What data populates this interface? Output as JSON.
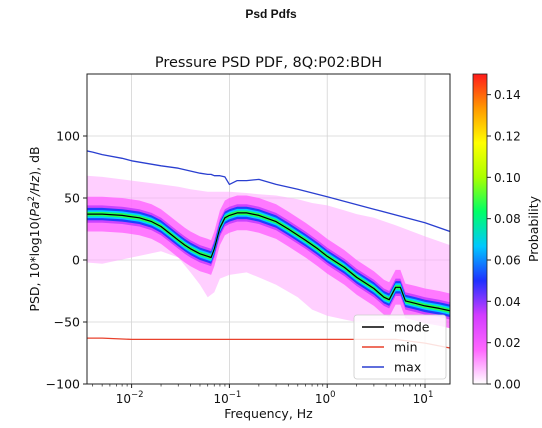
{
  "page": {
    "title": "Psd Pdfs"
  },
  "chart_data": {
    "type": "heatmap",
    "title": "Pressure PSD PDF, 8Q:P02:BDH",
    "xlabel": "Frequency, Hz",
    "ylabel": "PSD, 10*log10(Pa²/Hz), dB",
    "ylabel_parts": {
      "pre": "PSD, 10*log10(",
      "italic_base": "Pa",
      "sup": "2",
      "italic_tail": "/Hz",
      "post": "), dB"
    },
    "x_scale": "log",
    "xlim": [
      0.0035,
      18
    ],
    "ylim": [
      -100,
      150
    ],
    "x_ticks": [
      {
        "value": 0.01,
        "base": "10",
        "exp": "−2"
      },
      {
        "value": 0.1,
        "base": "10",
        "exp": "−1"
      },
      {
        "value": 1,
        "base": "10",
        "exp": "0"
      },
      {
        "value": 10,
        "base": "10",
        "exp": "1"
      }
    ],
    "y_ticks": [
      {
        "value": -100,
        "label": "−100"
      },
      {
        "value": -50,
        "label": "−50"
      },
      {
        "value": 0,
        "label": "0"
      },
      {
        "value": 50,
        "label": "50"
      },
      {
        "value": 100,
        "label": "100"
      }
    ],
    "grid": true,
    "legend_position": "lower-right",
    "series": [
      {
        "name": "mode",
        "color": "#000000",
        "x": [
          0.0035,
          0.005,
          0.008,
          0.012,
          0.016,
          0.02,
          0.025,
          0.03,
          0.035,
          0.04,
          0.05,
          0.06,
          0.065,
          0.07,
          0.08,
          0.09,
          0.1,
          0.12,
          0.15,
          0.2,
          0.3,
          0.4,
          0.6,
          0.8,
          1.0,
          1.5,
          2.0,
          3.0,
          3.8,
          4.3,
          5.0,
          5.6,
          6.3,
          8.0,
          10.0,
          14.0,
          18.0
        ],
        "y": [
          37,
          37,
          36,
          34,
          31,
          27,
          21,
          16,
          12,
          9,
          5,
          3,
          2,
          9,
          26,
          34,
          36,
          38,
          38,
          36,
          31,
          25,
          16,
          9,
          3,
          -6,
          -14,
          -23,
          -30,
          -32,
          -22,
          -22,
          -33,
          -35,
          -37,
          -39,
          -41
        ]
      },
      {
        "name": "min",
        "color": "#e8412c",
        "x": [
          0.0035,
          0.005,
          0.01,
          0.1,
          1.0,
          5.0,
          10.0,
          18.0
        ],
        "y": [
          -63,
          -63,
          -64,
          -64,
          -64,
          -64,
          -67,
          -71
        ]
      },
      {
        "name": "max",
        "color": "#2a3fd0",
        "x": [
          0.0035,
          0.004,
          0.005,
          0.008,
          0.01,
          0.02,
          0.03,
          0.05,
          0.06,
          0.065,
          0.07,
          0.08,
          0.09,
          0.1,
          0.12,
          0.15,
          0.2,
          0.3,
          0.5,
          1.0,
          3.0,
          10.0,
          18.0
        ],
        "y": [
          88,
          87,
          85,
          82,
          80,
          76,
          74,
          70,
          69,
          69,
          68,
          68,
          67,
          61,
          64,
          64,
          65,
          61,
          57,
          51,
          41,
          30,
          23
        ]
      }
    ],
    "density_envelope": {
      "x": [
        0.0035,
        0.005,
        0.01,
        0.02,
        0.03,
        0.04,
        0.05,
        0.06,
        0.07,
        0.08,
        0.1,
        0.15,
        0.2,
        0.3,
        0.5,
        0.7,
        1.0,
        1.5,
        2.0,
        3.0,
        5.0,
        10.0,
        18.0
      ],
      "upper": [
        68,
        67,
        64,
        61,
        59,
        57,
        56,
        55,
        55,
        55,
        55,
        54,
        53,
        52,
        49,
        46,
        44,
        40,
        37,
        34,
        28,
        19,
        12
      ],
      "lower": [
        -2,
        -3,
        2,
        7,
        2,
        -10,
        -20,
        -30,
        -26,
        -15,
        -12,
        -10,
        -14,
        -20,
        -30,
        -40,
        -45,
        -48,
        -50,
        -48,
        -48,
        -46,
        -45
      ]
    },
    "colorbar": {
      "label": "Probability",
      "min": 0,
      "max": 0.15,
      "ticks": [
        "0.00",
        "0.02",
        "0.04",
        "0.06",
        "0.08",
        "0.10",
        "0.12",
        "0.14"
      ],
      "tick_values": [
        0,
        0.02,
        0.04,
        0.06,
        0.08,
        0.1,
        0.12,
        0.14
      ],
      "colormap": [
        "#ffffff",
        "#ff66ff",
        "#d23cff",
        "#1f30ff",
        "#00c8ff",
        "#00ff66",
        "#aaff00",
        "#ffff00",
        "#ff9900",
        "#ff1a1a"
      ]
    }
  }
}
